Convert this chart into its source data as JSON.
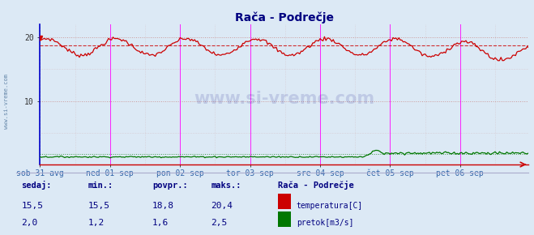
{
  "title": "Rača - Podrečje",
  "title_color": "#000080",
  "bg_color": "#dce9f5",
  "plot_bg_color": "#dce9f5",
  "x_labels": [
    "sob 31 avg",
    "ned 01 sep",
    "pon 02 sep",
    "tor 03 sep",
    "sre 04 sep",
    "čet 05 sep",
    "pet 06 sep"
  ],
  "y_ticks": [
    10,
    20
  ],
  "ylim": [
    0,
    22
  ],
  "temp_color": "#cc0000",
  "pretok_color": "#007700",
  "avg_line_color": "#cc0000",
  "avg_temp": 18.8,
  "avg_pretok": 1.6,
  "grid_color": "#cc9999",
  "magenta_line_color": "#ff00ff",
  "dark_dashed_color": "#888888",
  "left_axis_color": "#0000cc",
  "bottom_axis_color": "#cc0000",
  "sidebar_text": "www.si-vreme.com",
  "sidebar_color": "#6688aa",
  "watermark_text": "www.si-vreme.com",
  "watermark_color": "#000080",
  "footer_label_color": "#000080",
  "footer_value_color": "#000080",
  "sedaj_label": "sedaj:",
  "min_label": "min.:",
  "povpr_label": "povpr.:",
  "maks_label": "maks.:",
  "station_label": "Rača - Podrečje",
  "temp_label": "temperatura[C]",
  "pretok_label": "pretok[m3/s]",
  "sedaj_temp": 15.5,
  "min_temp": 15.5,
  "povpr_temp": 18.8,
  "maks_temp": 20.4,
  "sedaj_pretok": 2.0,
  "min_pretok": 1.2,
  "povpr_pretok": 1.6,
  "maks_pretok": 2.5,
  "n_points": 336,
  "pts_per_day": 48
}
